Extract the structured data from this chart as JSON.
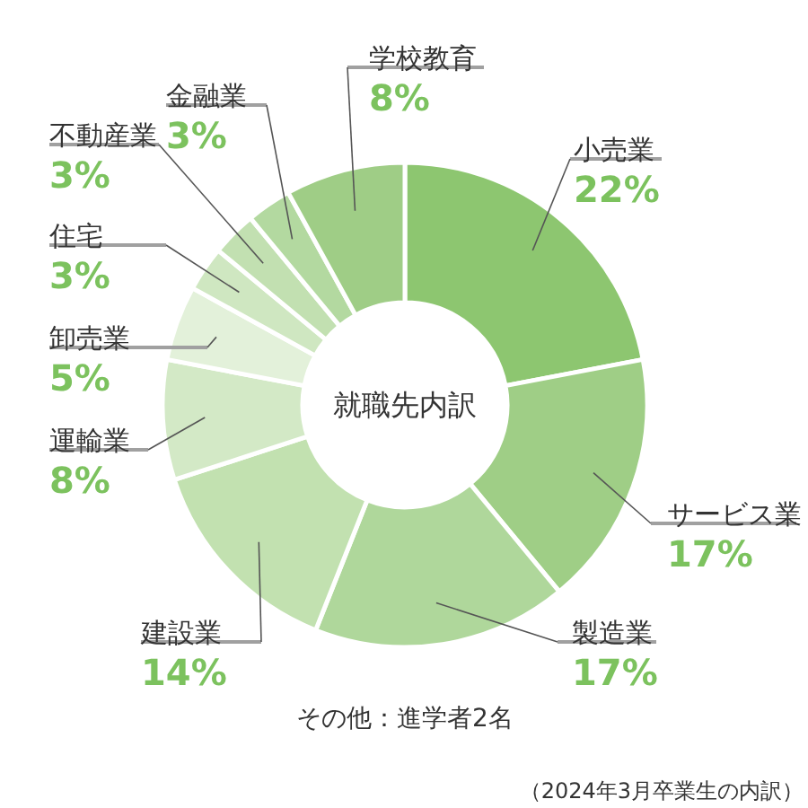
{
  "chart_data": {
    "type": "donut",
    "title": "就職先内訳",
    "categories": [
      "小売業",
      "サービス業",
      "製造業",
      "建設業",
      "運輸業",
      "卸売業",
      "住宅",
      "不動産業",
      "金融業",
      "学校教育"
    ],
    "values": [
      22,
      17,
      17,
      14,
      8,
      5,
      3,
      3,
      3,
      8
    ],
    "value_labels": [
      "22%",
      "17%",
      "17%",
      "14%",
      "8%",
      "5%",
      "3%",
      "3%",
      "3%",
      "8%"
    ],
    "colors": [
      "#8dc670",
      "#9fce86",
      "#afd79b",
      "#c2e1b0",
      "#d3e9c6",
      "#e3f1da",
      "#cfe7c1",
      "#c2e0b1",
      "#b3d9a0",
      "#9fcd86"
    ],
    "annotations": [
      "その他：進学者2名",
      "（2024年3月卒業生の内訳）"
    ]
  }
}
